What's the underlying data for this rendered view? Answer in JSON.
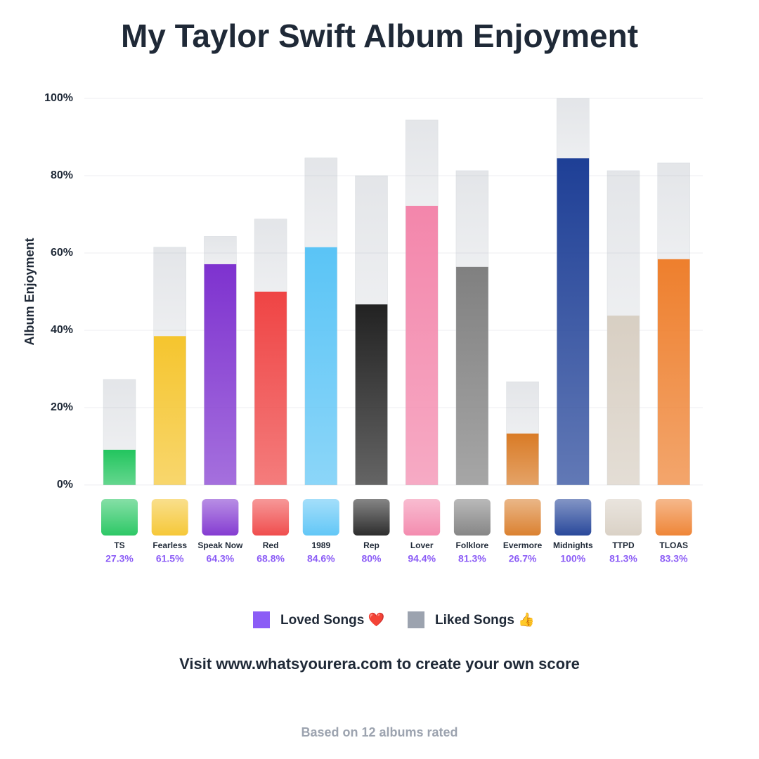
{
  "chart_data": {
    "type": "stacked_bar",
    "title": "My Taylor Swift Album Enjoyment",
    "y_label": "Album Enjoyment",
    "categories": [
      "TS",
      "Fearless",
      "Speak Now",
      "Red",
      "1989",
      "Rep",
      "Lover",
      "Folklore",
      "Evermore",
      "Midnights",
      "TTPD",
      "TLOAS"
    ],
    "series": [
      {
        "name": "Loved Songs ❤️",
        "color": "#8b5cf6",
        "colors": [
          "#22c55e",
          "#f5c52e",
          "#7e32cf",
          "#ef4444",
          "#5ac4f6",
          "#222222",
          "#f386ab",
          "#808080",
          "#d97b26",
          "#1e3f96",
          "#d8cfc3",
          "#ee7f2d"
        ],
        "values": [
          9.1,
          38.5,
          57.1,
          50,
          61.5,
          46.7,
          72.2,
          56.4,
          13.3,
          84.5,
          43.8,
          58.4
        ]
      },
      {
        "name": "Liked Songs 👍",
        "color": "#9ca3af",
        "values": [
          18.2,
          23.0,
          7.2,
          18.8,
          23.1,
          33.3,
          22.2,
          24.9,
          13.4,
          15.5,
          37.5,
          24.9
        ]
      }
    ],
    "totals": [
      27.3,
      61.5,
      64.3,
      68.8,
      84.6,
      80,
      94.4,
      81.3,
      26.7,
      100,
      81.3,
      83.3
    ],
    "total_labels": [
      "27.3%",
      "61.5%",
      "64.3%",
      "68.8%",
      "84.6%",
      "80%",
      "94.4%",
      "81.3%",
      "26.7%",
      "100%",
      "81.3%",
      "83.3%"
    ],
    "ylim": [
      0,
      100
    ],
    "yticks": [
      {
        "value": 0,
        "label": "0%"
      },
      {
        "value": 20,
        "label": "20%"
      },
      {
        "value": 40,
        "label": "40%"
      },
      {
        "value": 60,
        "label": "60%"
      },
      {
        "value": 80,
        "label": "80%"
      },
      {
        "value": 100,
        "label": "100%"
      }
    ],
    "grid": true,
    "legend": "bottom",
    "cta": "Visit www.whatsyourera.com to create your own score",
    "footer": "Based on 12 albums rated"
  }
}
